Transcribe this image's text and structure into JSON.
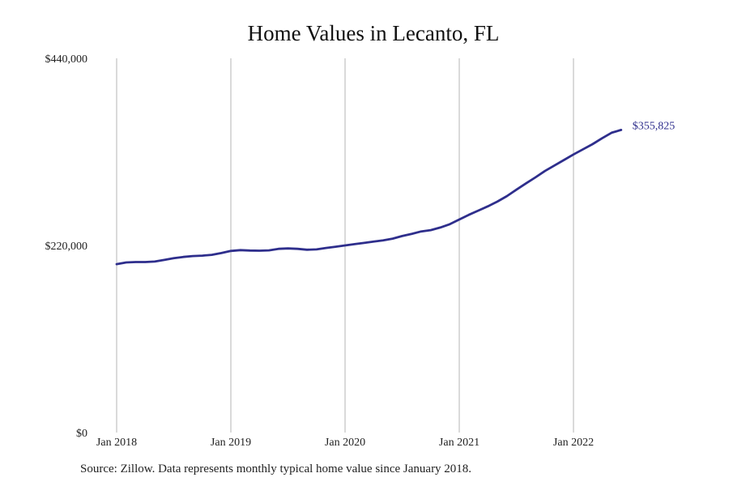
{
  "colors": {
    "line": "#2e2e8c",
    "grid": "#b5b5b5",
    "background": "#ffffff"
  },
  "source_note": "Source: Zillow. Data represents monthly typical home value since January 2018.",
  "chart_data": {
    "type": "line",
    "title": "Home Values in Lecanto, FL",
    "xlabel": "",
    "ylabel": "",
    "x_tick_labels": [
      "Jan 2018",
      "Jan 2019",
      "Jan 2020",
      "Jan 2021",
      "Jan 2022"
    ],
    "y_tick_labels": [
      "$0",
      "$220,000",
      "$440,000"
    ],
    "y_ticks": [
      0,
      220000,
      440000
    ],
    "ylim": [
      0,
      440000
    ],
    "xlim": [
      "2018-01",
      "2022-12"
    ],
    "grid": "vertical lines at January of each year",
    "legend": "none",
    "end_label": "$355,825",
    "series": [
      {
        "x": [
          "2018-01",
          "2018-02",
          "2018-03",
          "2018-04",
          "2018-05",
          "2018-06",
          "2018-07",
          "2018-08",
          "2018-09",
          "2018-10",
          "2018-11",
          "2018-12",
          "2019-01",
          "2019-02",
          "2019-03",
          "2019-04",
          "2019-05",
          "2019-06",
          "2019-07",
          "2019-08",
          "2019-09",
          "2019-10",
          "2019-11",
          "2019-12",
          "2020-01",
          "2020-02",
          "2020-03",
          "2020-04",
          "2020-05",
          "2020-06",
          "2020-07",
          "2020-08",
          "2020-09",
          "2020-10",
          "2020-11",
          "2020-12",
          "2021-01",
          "2021-02",
          "2021-03",
          "2021-04",
          "2021-05",
          "2021-06",
          "2021-07",
          "2021-08",
          "2021-09",
          "2021-10",
          "2021-11",
          "2021-12",
          "2022-01",
          "2022-02",
          "2022-03",
          "2022-04",
          "2022-05",
          "2022-06"
        ],
        "values": [
          198000,
          200000,
          200500,
          200500,
          201000,
          203000,
          205000,
          206500,
          207500,
          208000,
          209000,
          211000,
          213500,
          214500,
          214000,
          213800,
          214200,
          216000,
          216500,
          216000,
          215000,
          215300,
          217000,
          218500,
          220000,
          221500,
          223000,
          224500,
          226000,
          228000,
          231000,
          233500,
          236500,
          238000,
          241000,
          245000,
          250500,
          256000,
          261000,
          266000,
          271500,
          278000,
          285500,
          293000,
          300000,
          307500,
          314000,
          320500,
          327000,
          333000,
          339000,
          346000,
          352500,
          355825
        ]
      }
    ]
  }
}
